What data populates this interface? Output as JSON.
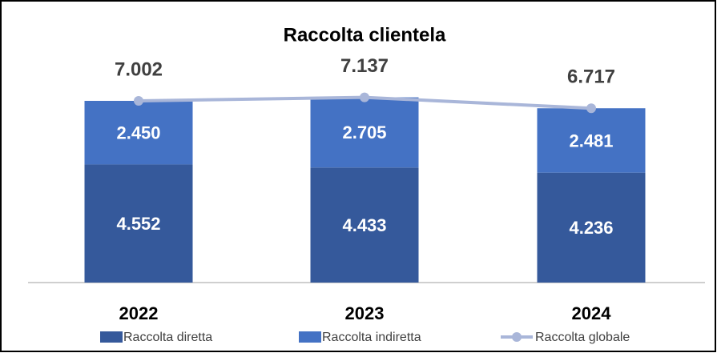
{
  "chart_data": {
    "type": "bar",
    "stacked": true,
    "title": "Raccolta clientela",
    "categories": [
      "2022",
      "2023",
      "2024"
    ],
    "series": [
      {
        "name": "Raccolta diretta",
        "type": "bar",
        "color": "#35599b",
        "values": [
          4552,
          4433,
          4236
        ],
        "value_labels": [
          "4.552",
          "4.433",
          "4.236"
        ]
      },
      {
        "name": "Raccolta indiretta",
        "type": "bar",
        "color": "#4472c4",
        "values": [
          2450,
          2705,
          2481
        ],
        "value_labels": [
          "2.450",
          "2.705",
          "2.481"
        ]
      },
      {
        "name": "Raccolta globale",
        "type": "line",
        "color": "#a9b6d9",
        "values": [
          7002,
          7137,
          6717
        ],
        "value_labels": [
          "7.002",
          "7.137",
          "6.717"
        ]
      }
    ],
    "ylim": [
      0,
      10000
    ],
    "legend": "bottom"
  }
}
